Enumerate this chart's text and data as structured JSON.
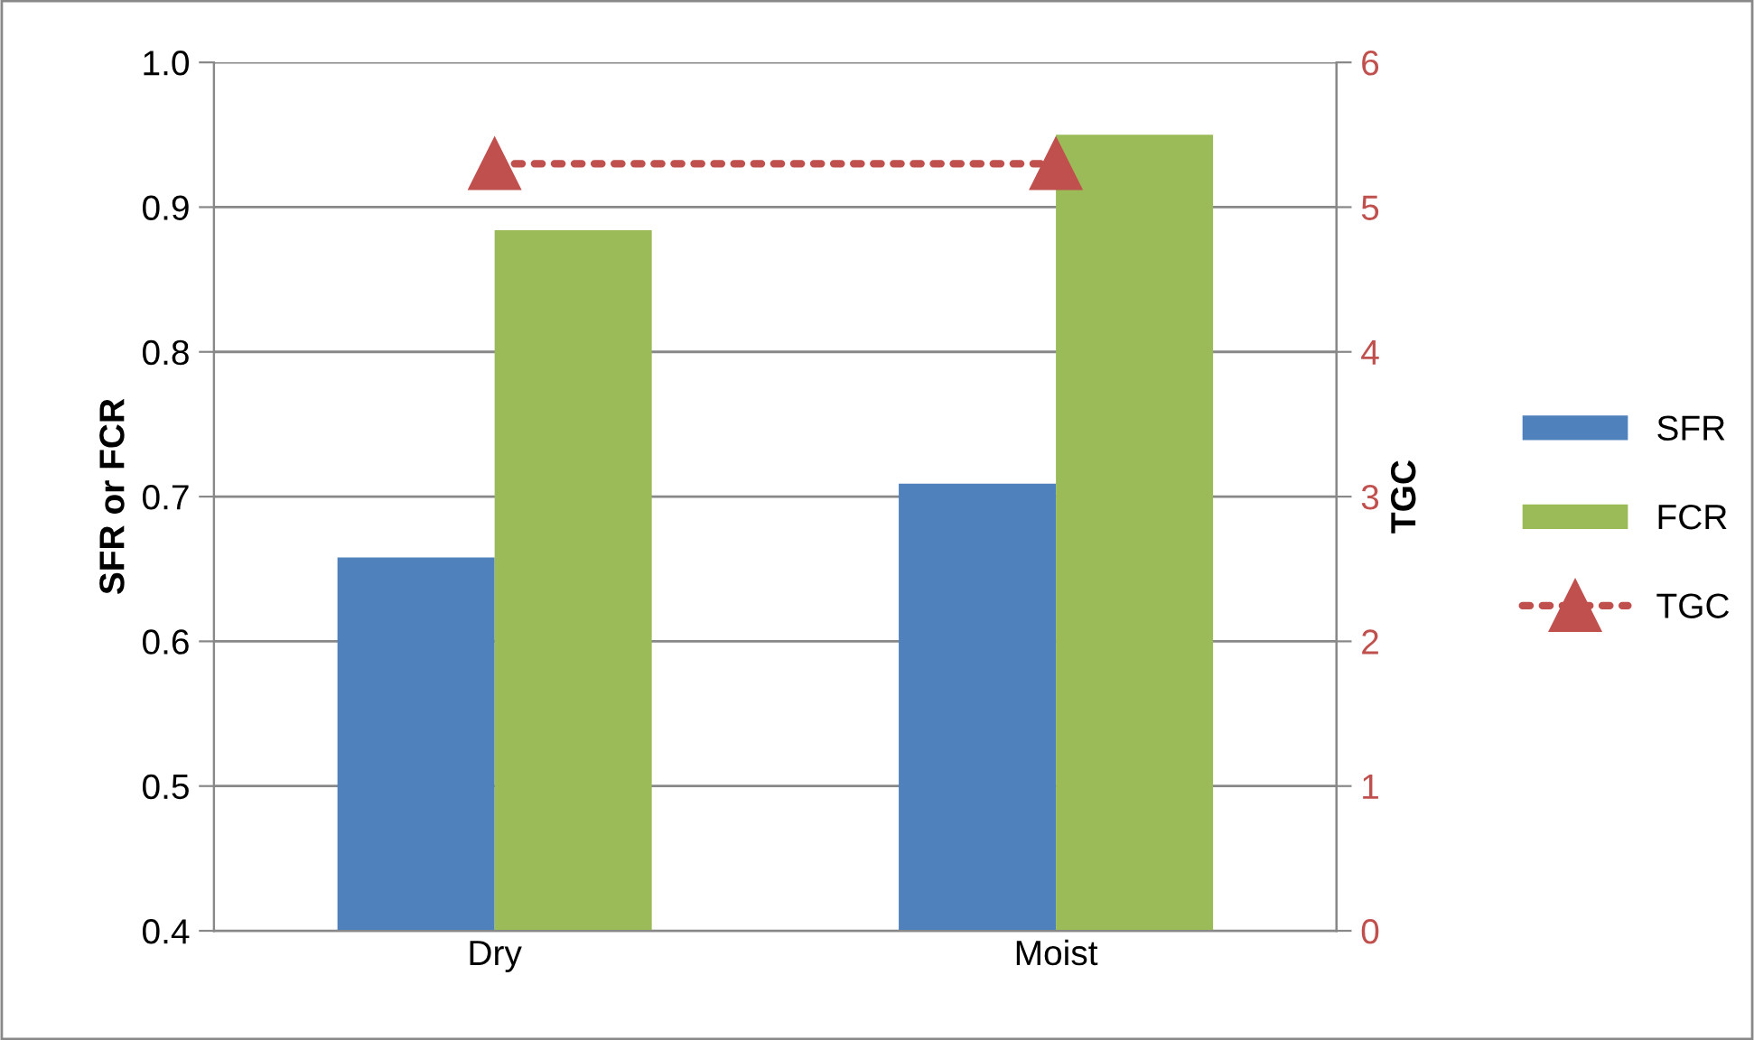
{
  "chart_data": {
    "type": "bar",
    "categories": [
      "Dry",
      "Moist"
    ],
    "ylabel": "SFR or FCR",
    "y2label": "TGC",
    "series": [
      {
        "name": "SFR",
        "color": "#4f81bd",
        "values": [
          0.658,
          0.709
        ]
      },
      {
        "name": "FCR",
        "color": "#9bbb59",
        "values": [
          0.884,
          0.95
        ]
      },
      {
        "name": "TGC",
        "type": "line",
        "axis": "y2",
        "color": "#c0504d",
        "values": [
          5.3,
          5.3
        ],
        "marker": "triangle",
        "line_style": "dotted"
      }
    ],
    "ylim": [
      0.4,
      1.0
    ],
    "yticks": [
      {
        "value": 0.4,
        "label": "0.4"
      },
      {
        "value": 0.5,
        "label": "0.5"
      },
      {
        "value": 0.6,
        "label": "0.6"
      },
      {
        "value": 0.7,
        "label": "0.7"
      },
      {
        "value": 0.8,
        "label": "0.8"
      },
      {
        "value": 0.9,
        "label": "0.9"
      },
      {
        "value": 1.0,
        "label": "1.0"
      }
    ],
    "y2lim": [
      0,
      6
    ],
    "y2ticks": [
      0,
      1,
      2,
      3,
      4,
      5,
      6
    ],
    "grid": "y",
    "legend": "right"
  }
}
